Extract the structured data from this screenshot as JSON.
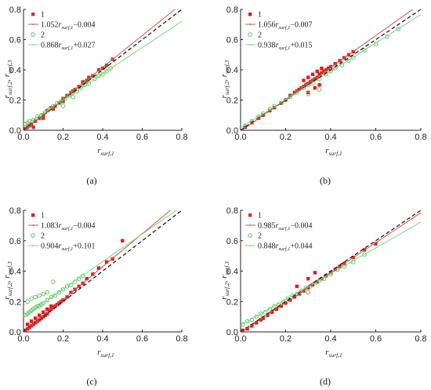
{
  "chart_data": [
    {
      "type": "scatter",
      "caption": "(a)",
      "xlabel": {
        "base": "r",
        "sub": "surf,1"
      },
      "ylabel": {
        "base": "r",
        "parts": [
          {
            "sub": "surf,2"
          },
          {
            "sep": ", r"
          },
          {
            "sub": "surf,3"
          }
        ]
      },
      "xlim": [
        0,
        0.8
      ],
      "ylim": [
        0,
        0.8
      ],
      "xticks": [
        "0.0",
        "0.2",
        "0.4",
        "0.6",
        "0.8"
      ],
      "yticks": [
        "0.0",
        "0.2",
        "0.4",
        "0.6",
        "0.8"
      ],
      "legend": [
        {
          "label": "1",
          "kind": "marker",
          "color": "#c0392b"
        },
        {
          "label_pre": "1.052",
          "label_var": "r",
          "label_sub": "surf,1",
          "label_post": "−0.004",
          "kind": "line",
          "color": "#d35454"
        },
        {
          "label": "2",
          "kind": "marker",
          "color": "#4fc34f"
        },
        {
          "label_pre": "0.868",
          "label_var": "r",
          "label_sub": "surf,1",
          "label_post": "+0.027",
          "kind": "line",
          "color": "#7fd37f"
        }
      ],
      "series": [
        {
          "name": "1",
          "color": "#c0392b",
          "x": [
            0.01,
            0.02,
            0.03,
            0.04,
            0.06,
            0.08,
            0.1,
            0.12,
            0.14,
            0.16,
            0.18,
            0.2,
            0.22,
            0.24,
            0.26,
            0.28,
            0.3,
            0.32,
            0.35,
            0.38,
            0.4,
            0.42,
            0.45,
            0.05,
            0.1,
            0.15,
            0.2,
            0.25,
            0.3,
            0.33
          ],
          "y": [
            0.01,
            0.02,
            0.03,
            0.04,
            0.06,
            0.08,
            0.1,
            0.13,
            0.15,
            0.16,
            0.18,
            0.21,
            0.23,
            0.25,
            0.27,
            0.29,
            0.31,
            0.33,
            0.36,
            0.4,
            0.41,
            0.43,
            0.47,
            0.02,
            0.08,
            0.14,
            0.19,
            0.26,
            0.32,
            0.35
          ]
        },
        {
          "name": "2",
          "color": "#4fc34f",
          "x": [
            0.01,
            0.02,
            0.03,
            0.05,
            0.07,
            0.09,
            0.11,
            0.13,
            0.15,
            0.17,
            0.19,
            0.21,
            0.23,
            0.25,
            0.27,
            0.29,
            0.31,
            0.33,
            0.36,
            0.38,
            0.4,
            0.42,
            0.44,
            0.2,
            0.25
          ],
          "y": [
            0.04,
            0.05,
            0.06,
            0.07,
            0.09,
            0.1,
            0.12,
            0.14,
            0.16,
            0.18,
            0.19,
            0.21,
            0.23,
            0.25,
            0.26,
            0.28,
            0.3,
            0.31,
            0.34,
            0.36,
            0.37,
            0.39,
            0.41,
            0.16,
            0.22
          ]
        }
      ],
      "fits": [
        {
          "name": "fit1",
          "slope": 1.052,
          "intercept": -0.004,
          "color": "#d35454"
        },
        {
          "name": "fit2",
          "slope": 0.868,
          "intercept": 0.027,
          "color": "#7fd37f"
        }
      ]
    },
    {
      "type": "scatter",
      "caption": "(b)",
      "xlabel": {
        "base": "r",
        "sub": "surf,1"
      },
      "ylabel": {
        "base": "r",
        "parts": [
          {
            "sub": "surf,2"
          },
          {
            "sep": ", r"
          },
          {
            "sub": "surf,3"
          }
        ]
      },
      "xlim": [
        0,
        0.8
      ],
      "ylim": [
        0,
        0.8
      ],
      "xticks": [
        "0.0",
        "0.2",
        "0.4",
        "0.6",
        "0.8"
      ],
      "yticks": [
        "0.0",
        "0.2",
        "0.4",
        "0.6",
        "0.8"
      ],
      "legend": [
        {
          "label": "1",
          "kind": "marker",
          "color": "#e01b1b"
        },
        {
          "label_pre": "1.056",
          "label_var": "r",
          "label_sub": "surf,1",
          "label_post": "−0.007",
          "kind": "line",
          "color": "#d35454"
        },
        {
          "label": "2",
          "kind": "marker",
          "color": "#4fc34f"
        },
        {
          "label_pre": "0.938",
          "label_var": "r",
          "label_sub": "surf,1",
          "label_post": "+0.015",
          "kind": "line",
          "color": "#7fd37f"
        }
      ],
      "series": [
        {
          "name": "1",
          "color": "#e01b1b",
          "x": [
            0.02,
            0.05,
            0.08,
            0.1,
            0.13,
            0.15,
            0.18,
            0.2,
            0.22,
            0.24,
            0.25,
            0.26,
            0.27,
            0.28,
            0.29,
            0.3,
            0.31,
            0.32,
            0.33,
            0.34,
            0.35,
            0.36,
            0.37,
            0.38,
            0.39,
            0.4,
            0.42,
            0.44,
            0.46,
            0.48,
            0.5,
            0.28,
            0.3,
            0.32,
            0.34,
            0.36,
            0.3,
            0.33,
            0.35
          ],
          "y": [
            0.02,
            0.05,
            0.08,
            0.1,
            0.13,
            0.15,
            0.18,
            0.2,
            0.23,
            0.25,
            0.26,
            0.27,
            0.28,
            0.29,
            0.3,
            0.31,
            0.32,
            0.33,
            0.34,
            0.35,
            0.37,
            0.38,
            0.39,
            0.4,
            0.41,
            0.42,
            0.44,
            0.46,
            0.48,
            0.5,
            0.52,
            0.33,
            0.35,
            0.37,
            0.39,
            0.41,
            0.25,
            0.28,
            0.3
          ]
        },
        {
          "name": "2",
          "color": "#4fc34f",
          "x": [
            0.02,
            0.05,
            0.08,
            0.1,
            0.13,
            0.15,
            0.18,
            0.2,
            0.22,
            0.25,
            0.28,
            0.3,
            0.32,
            0.35,
            0.38,
            0.4,
            0.42,
            0.45,
            0.48,
            0.5,
            0.55,
            0.6,
            0.65,
            0.7,
            0.3,
            0.35
          ],
          "y": [
            0.03,
            0.06,
            0.09,
            0.11,
            0.14,
            0.16,
            0.18,
            0.2,
            0.22,
            0.25,
            0.28,
            0.3,
            0.31,
            0.34,
            0.37,
            0.39,
            0.41,
            0.43,
            0.46,
            0.48,
            0.53,
            0.57,
            0.62,
            0.67,
            0.24,
            0.27
          ]
        }
      ],
      "fits": [
        {
          "name": "fit1",
          "slope": 1.056,
          "intercept": -0.007,
          "color": "#d35454"
        },
        {
          "name": "fit2",
          "slope": 0.938,
          "intercept": 0.015,
          "color": "#7fd37f"
        }
      ]
    },
    {
      "type": "scatter",
      "caption": "(c)",
      "xlabel": {
        "base": "r",
        "sub": "surf,1"
      },
      "ylabel": {
        "base": "r",
        "parts": [
          {
            "sub": "surf,2"
          },
          {
            "sep": ", r"
          },
          {
            "sub": "surf,3"
          }
        ]
      },
      "xlim": [
        0,
        0.8
      ],
      "ylim": [
        0,
        0.8
      ],
      "xticks": [
        "0.0",
        "0.2",
        "0.4",
        "0.6",
        "0.8"
      ],
      "yticks": [
        "0.0",
        "0.2",
        "0.4",
        "0.6",
        "0.8"
      ],
      "legend": [
        {
          "label": "1",
          "kind": "marker",
          "color": "#e01b1b"
        },
        {
          "label_pre": "1.083",
          "label_var": "r",
          "label_sub": "surf,1",
          "label_post": "−0.004",
          "kind": "line",
          "color": "#d35454"
        },
        {
          "label": "2",
          "kind": "marker",
          "color": "#4fc34f"
        },
        {
          "label_pre": "0.904",
          "label_var": "r",
          "label_sub": "surf,1",
          "label_post": "+0.101",
          "kind": "line",
          "color": "#7fd37f"
        }
      ],
      "series": [
        {
          "name": "1",
          "color": "#e01b1b",
          "x": [
            0.01,
            0.02,
            0.03,
            0.04,
            0.05,
            0.06,
            0.07,
            0.08,
            0.09,
            0.1,
            0.11,
            0.12,
            0.13,
            0.14,
            0.15,
            0.16,
            0.17,
            0.18,
            0.19,
            0.2,
            0.22,
            0.24,
            0.26,
            0.28,
            0.3,
            0.32,
            0.35,
            0.38,
            0.42,
            0.45,
            0.5,
            0.02,
            0.04,
            0.06,
            0.08,
            0.1,
            0.12,
            0.14
          ],
          "y": [
            0.01,
            0.02,
            0.03,
            0.04,
            0.05,
            0.06,
            0.07,
            0.08,
            0.09,
            0.1,
            0.11,
            0.12,
            0.14,
            0.15,
            0.16,
            0.17,
            0.18,
            0.19,
            0.2,
            0.21,
            0.23,
            0.26,
            0.28,
            0.3,
            0.32,
            0.35,
            0.38,
            0.42,
            0.46,
            0.48,
            0.6,
            0.05,
            0.07,
            0.09,
            0.11,
            0.13,
            0.15,
            0.17
          ]
        },
        {
          "name": "2",
          "color": "#4fc34f",
          "x": [
            0.01,
            0.02,
            0.03,
            0.04,
            0.05,
            0.06,
            0.07,
            0.08,
            0.09,
            0.1,
            0.12,
            0.14,
            0.16,
            0.18,
            0.2,
            0.22,
            0.24,
            0.26,
            0.28,
            0.3,
            0.02,
            0.04,
            0.06,
            0.08,
            0.1,
            0.12,
            0.15
          ],
          "y": [
            0.11,
            0.12,
            0.13,
            0.14,
            0.15,
            0.16,
            0.17,
            0.17,
            0.18,
            0.19,
            0.21,
            0.23,
            0.24,
            0.26,
            0.28,
            0.3,
            0.31,
            0.33,
            0.35,
            0.37,
            0.2,
            0.22,
            0.23,
            0.24,
            0.25,
            0.26,
            0.33
          ]
        }
      ],
      "fits": [
        {
          "name": "fit1",
          "slope": 1.083,
          "intercept": -0.004,
          "color": "#d35454"
        },
        {
          "name": "fit2",
          "slope": 0.904,
          "intercept": 0.101,
          "color": "#7fd37f"
        }
      ]
    },
    {
      "type": "scatter",
      "caption": "(d)",
      "xlabel": {
        "base": "r",
        "sub": "surf,1"
      },
      "ylabel": {
        "base": "r",
        "parts": [
          {
            "sub": "surf,2"
          },
          {
            "sep": ", r"
          },
          {
            "sub": "surf,3"
          }
        ]
      },
      "xlim": [
        0,
        0.8
      ],
      "ylim": [
        0,
        0.8
      ],
      "xticks": [
        "0.0",
        "0.2",
        "0.4",
        "0.6",
        "0.8"
      ],
      "yticks": [
        "0.0",
        "0.2",
        "0.4",
        "0.6",
        "0.8"
      ],
      "legend": [
        {
          "label": "1",
          "kind": "marker",
          "color": "#c0392b"
        },
        {
          "label_pre": "0.985",
          "label_var": "r",
          "label_sub": "surf,1",
          "label_post": "−0.004",
          "kind": "line",
          "color": "#d35454"
        },
        {
          "label": "2",
          "kind": "marker",
          "color": "#4fc34f"
        },
        {
          "label_pre": "0.848",
          "label_var": "r",
          "label_sub": "surf,1",
          "label_post": "+0.044",
          "kind": "line",
          "color": "#7fd37f"
        }
      ],
      "series": [
        {
          "name": "1",
          "color": "#e01b1b",
          "x": [
            0.01,
            0.03,
            0.05,
            0.07,
            0.09,
            0.1,
            0.12,
            0.14,
            0.16,
            0.18,
            0.2,
            0.22,
            0.24,
            0.26,
            0.28,
            0.3,
            0.32,
            0.34,
            0.36,
            0.38,
            0.4,
            0.42,
            0.44,
            0.46,
            0.5,
            0.55,
            0.6,
            0.25,
            0.3,
            0.33
          ],
          "y": [
            0.01,
            0.02,
            0.04,
            0.06,
            0.08,
            0.09,
            0.11,
            0.13,
            0.15,
            0.17,
            0.19,
            0.21,
            0.23,
            0.25,
            0.27,
            0.29,
            0.31,
            0.33,
            0.35,
            0.37,
            0.39,
            0.41,
            0.43,
            0.45,
            0.49,
            0.54,
            0.58,
            0.3,
            0.35,
            0.39
          ]
        },
        {
          "name": "2",
          "color": "#4fc34f",
          "x": [
            0.01,
            0.03,
            0.05,
            0.07,
            0.09,
            0.11,
            0.13,
            0.15,
            0.17,
            0.19,
            0.21,
            0.23,
            0.25,
            0.27,
            0.29,
            0.31,
            0.33,
            0.35,
            0.37,
            0.4,
            0.43,
            0.46,
            0.5,
            0.55,
            0.3
          ],
          "y": [
            0.05,
            0.07,
            0.08,
            0.1,
            0.12,
            0.13,
            0.15,
            0.17,
            0.18,
            0.2,
            0.22,
            0.24,
            0.25,
            0.27,
            0.29,
            0.3,
            0.32,
            0.34,
            0.35,
            0.38,
            0.41,
            0.43,
            0.46,
            0.51,
            0.26
          ]
        }
      ],
      "fits": [
        {
          "name": "fit1",
          "slope": 0.985,
          "intercept": -0.004,
          "color": "#d35454"
        },
        {
          "name": "fit2",
          "slope": 0.848,
          "intercept": 0.044,
          "color": "#7fd37f"
        }
      ]
    }
  ]
}
